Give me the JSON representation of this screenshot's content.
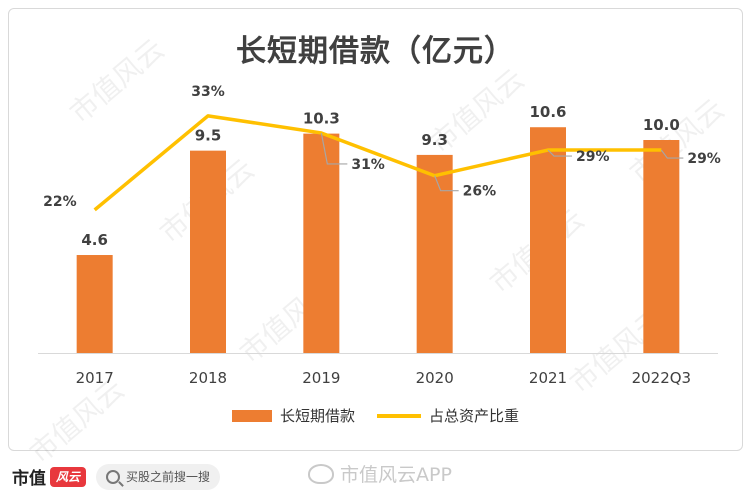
{
  "chart_data": {
    "type": "bar+line",
    "title": "长短期借款（亿元）",
    "categories": [
      "2017",
      "2018",
      "2019",
      "2020",
      "2021",
      "2022Q3"
    ],
    "series": [
      {
        "name": "长短期借款",
        "type": "bar",
        "color": "#ED7D31",
        "values": [
          4.6,
          9.5,
          10.3,
          9.3,
          10.6,
          10.0
        ],
        "labels": [
          "4.6",
          "9.5",
          "10.3",
          "9.3",
          "10.6",
          "10.0"
        ]
      },
      {
        "name": "占总资产比重",
        "type": "line",
        "color": "#FFC000",
        "values": [
          22,
          33,
          31,
          26,
          29,
          29
        ],
        "labels": [
          "22%",
          "33%",
          "31%",
          "26%",
          "29%",
          "29%"
        ]
      }
    ],
    "ylim_bar": [
      0,
      11
    ],
    "ylim_line": [
      0,
      40
    ]
  },
  "watermark": [
    "市值风云",
    "市值风云",
    "市值风云",
    "市值风云",
    "市值风云",
    "市值风云",
    "市值风云",
    "市值风云"
  ],
  "footer": {
    "brand": "市值",
    "brand_logo": "风云",
    "search_placeholder": "买股之前搜一搜",
    "weibo_text": "市值风云APP"
  }
}
